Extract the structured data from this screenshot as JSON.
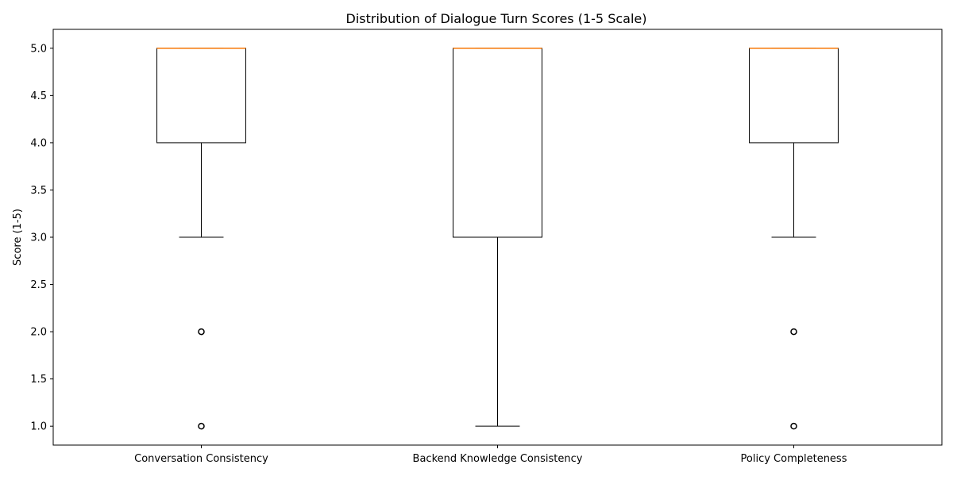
{
  "chart_data": {
    "type": "box",
    "title": "Distribution of Dialogue Turn Scores (1-5 Scale)",
    "xlabel": "",
    "ylabel": "Score (1-5)",
    "ylim": [
      0.8,
      5.2
    ],
    "yticks": [
      1.0,
      1.5,
      2.0,
      2.5,
      3.0,
      3.5,
      4.0,
      4.5,
      5.0
    ],
    "ytick_labels": [
      "1.0",
      "1.5",
      "2.0",
      "2.5",
      "3.0",
      "3.5",
      "4.0",
      "4.5",
      "5.0"
    ],
    "grid": false,
    "categories": [
      "Conversation Consistency",
      "Backend Knowledge Consistency",
      "Policy Completeness"
    ],
    "boxes": [
      {
        "category": "Conversation Consistency",
        "whisker_low": 3.0,
        "q1": 4.0,
        "median": 5.0,
        "q3": 5.0,
        "whisker_high": 5.0,
        "outliers": [
          2.0,
          1.0
        ]
      },
      {
        "category": "Backend Knowledge Consistency",
        "whisker_low": 1.0,
        "q1": 3.0,
        "median": 5.0,
        "q3": 5.0,
        "whisker_high": 5.0,
        "outliers": []
      },
      {
        "category": "Policy Completeness",
        "whisker_low": 3.0,
        "q1": 4.0,
        "median": 5.0,
        "q3": 5.0,
        "whisker_high": 5.0,
        "outliers": [
          2.0,
          1.0
        ]
      }
    ],
    "colors": {
      "box": "#000000",
      "median": "#ff7f0e",
      "axes": "#000000"
    }
  }
}
